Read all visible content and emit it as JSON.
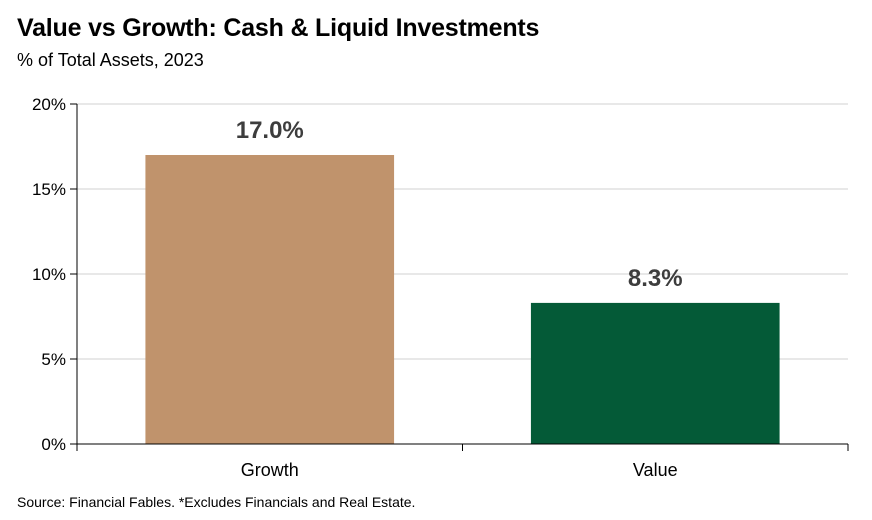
{
  "title": "Value vs Growth: Cash & Liquid Investments",
  "subtitle": "% of Total Assets, 2023",
  "source": "Source: Financial Fables. *Excludes Financials and Real Estate.",
  "chart_data": {
    "type": "bar",
    "categories": [
      "Growth",
      "Value"
    ],
    "values": [
      17.0,
      8.3
    ],
    "data_labels": [
      "17.0%",
      "8.3%"
    ],
    "colors": [
      "#c0936c",
      "#045a37"
    ],
    "ylim": [
      0,
      20
    ],
    "yticks": [
      0,
      5,
      10,
      15,
      20
    ],
    "ytick_labels": [
      "0%",
      "5%",
      "10%",
      "15%",
      "20%"
    ],
    "grid": true,
    "legend": "none",
    "title": "Value vs Growth: Cash & Liquid Investments",
    "xlabel": "",
    "ylabel": ""
  }
}
